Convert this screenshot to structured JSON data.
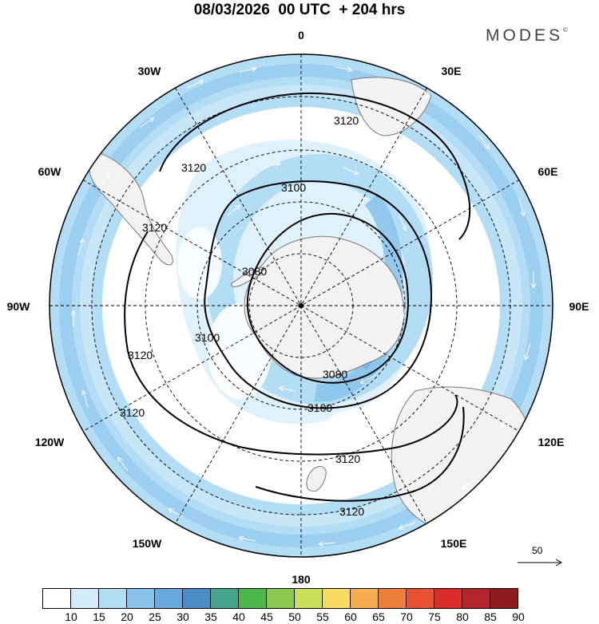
{
  "header": {
    "title": "08/03/2026  00 UTC  + 204 hrs",
    "brand": "MODES",
    "brand_mark": "©"
  },
  "map": {
    "projection": "south polar stereographic",
    "meridian_labels": {
      "m0": "0",
      "m30e": "30E",
      "m60e": "60E",
      "m90e": "90E",
      "m120e": "120E",
      "m150e": "150E",
      "m180": "180",
      "m150w": "150W",
      "m120w": "120W",
      "m90w": "90W",
      "m60w": "60W",
      "m30w": "30W"
    },
    "contours": [
      {
        "level": "3080",
        "label_a": "3080",
        "label_b": "3080"
      },
      {
        "level": "3100",
        "label_a": "3100",
        "label_b": "3100",
        "label_c": "3100"
      },
      {
        "level": "3120",
        "label_a": "3120",
        "label_b": "3120",
        "label_c": "3120",
        "label_d": "3120",
        "label_e": "3120",
        "label_f": "3120",
        "label_g": "3120"
      }
    ],
    "reference_vector": "50",
    "colors": {
      "land": "#f2f2f2",
      "coast": "#777777",
      "wind_light": "#d4ecfa",
      "wind_mid": "#b3dcf5",
      "wind_strong": "#87c2ea",
      "wind_stronger": "#6aa9de"
    }
  },
  "colorbar": {
    "ticks": [
      "10",
      "15",
      "20",
      "25",
      "30",
      "35",
      "40",
      "45",
      "50",
      "55",
      "60",
      "65",
      "70",
      "75",
      "80",
      "85",
      "90"
    ],
    "colors": [
      "#ffffff",
      "#d4ecfa",
      "#b3dcf5",
      "#87c2ea",
      "#6aa9de",
      "#4a8cc6",
      "#46a58d",
      "#4cb84a",
      "#8ac650",
      "#cade57",
      "#f6dc60",
      "#f5ad50",
      "#ee7e3c",
      "#e95230",
      "#d82d28",
      "#b5242a",
      "#8d1a1c"
    ]
  }
}
